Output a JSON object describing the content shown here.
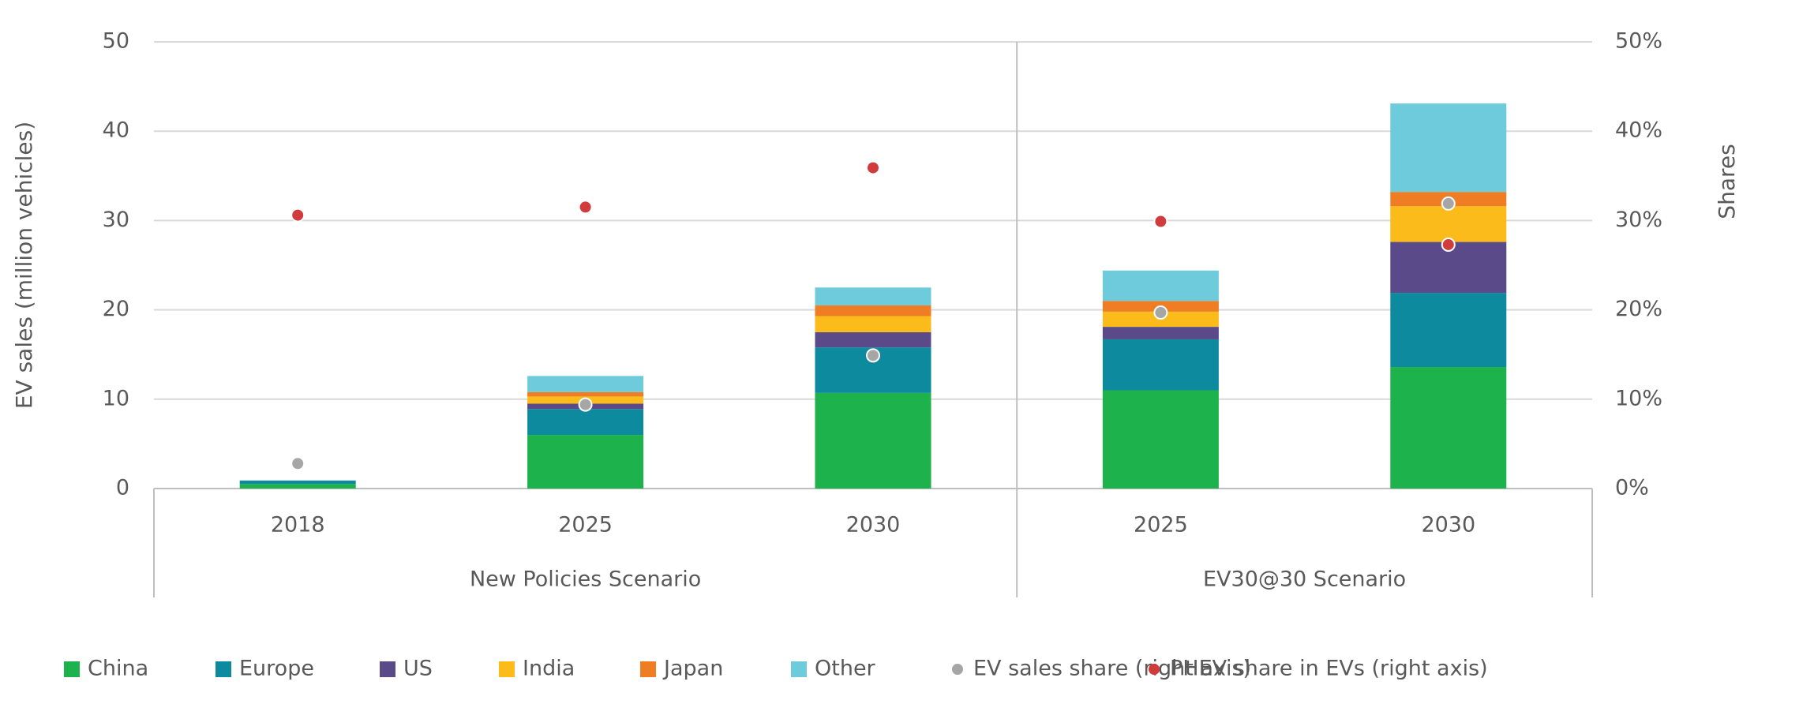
{
  "chart_data": {
    "type": "bar",
    "stacked": true,
    "y_label": "EV sales (million vehicles)",
    "y2_label": "Shares",
    "groups": [
      {
        "name": "New Policies Scenario",
        "categories": [
          "2018",
          "2025",
          "2030"
        ]
      },
      {
        "name": "EV30@30 Scenario",
        "categories": [
          "2025",
          "2030"
        ]
      }
    ],
    "series": [
      {
        "name": "China",
        "type": "bar",
        "color": "#1db24b",
        "values": [
          0.5,
          6.0,
          10.7,
          11.0,
          13.6
        ]
      },
      {
        "name": "Europe",
        "type": "bar",
        "color": "#0e8a9e",
        "values": [
          0.4,
          2.9,
          5.1,
          5.7,
          8.3
        ]
      },
      {
        "name": "US",
        "type": "bar",
        "color": "#5a4a8a",
        "values": [
          0,
          0.6,
          1.7,
          1.4,
          5.7
        ]
      },
      {
        "name": "India",
        "type": "bar",
        "color": "#fbbb1b",
        "values": [
          0,
          0.8,
          1.8,
          1.7,
          4.0
        ]
      },
      {
        "name": "Japan",
        "type": "bar",
        "color": "#ee7d23",
        "values": [
          0,
          0.5,
          1.2,
          1.2,
          1.6
        ]
      },
      {
        "name": "Other",
        "type": "bar",
        "color": "#6ecbdc",
        "values": [
          0,
          1.8,
          2.0,
          3.4,
          9.9
        ]
      },
      {
        "name": "EV sales share (right axis)",
        "type": "scatter",
        "axis": "y2",
        "color": "#a6a6a6",
        "values": [
          2.8,
          9.4,
          14.9,
          19.7,
          31.9
        ]
      },
      {
        "name": "PHEV share in EVs (right axis)",
        "type": "scatter",
        "axis": "y2",
        "color": "#d23b3b",
        "values": [
          30.6,
          31.5,
          35.9,
          29.9,
          27.3
        ]
      }
    ],
    "ylim": [
      0,
      50
    ],
    "yticks": [
      0,
      10,
      20,
      30,
      40,
      50
    ],
    "y2lim": [
      0,
      50
    ],
    "y2ticks": [
      {
        "value": 0,
        "label": "0%"
      },
      {
        "value": 10,
        "label": "10%"
      },
      {
        "value": 20,
        "label": "20%"
      },
      {
        "value": 30,
        "label": "30%"
      },
      {
        "value": 40,
        "label": "40%"
      },
      {
        "value": 50,
        "label": "50%"
      }
    ],
    "grid": true,
    "legend": "bottom"
  }
}
